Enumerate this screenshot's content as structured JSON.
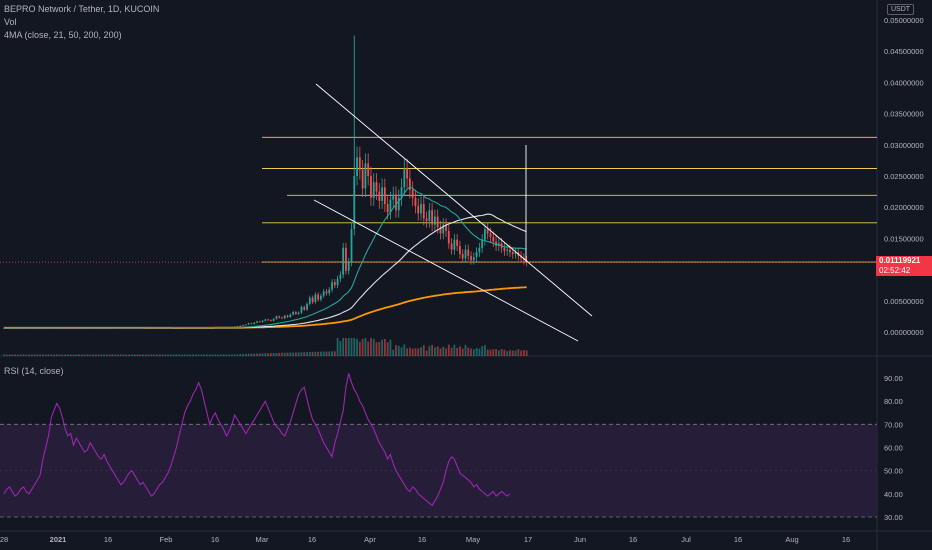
{
  "header": {
    "title": "BEPRO Network / Tether, 1D, KUCOIN",
    "vol_label": "Vol",
    "ma_label": "4MA (close, 21, 50, 200, 200)",
    "rsi_label": "RSI (14, close)",
    "currency": "USDT"
  },
  "last_price": {
    "value": "0.01119921",
    "countdown": "02:52:42"
  },
  "colors": {
    "background": "#131722",
    "up": "#26a69a",
    "down": "#ef5350",
    "ma21": "#26a69a",
    "ma50": "#e0e3eb",
    "ma200": "#ff9800",
    "horizontal_levels": "#f2c94c",
    "trendlines": "#ffffff",
    "rsi_line": "#9c27b0",
    "rsi_band": "#2a1f3d"
  },
  "chart_data": [
    {
      "type": "candlestick",
      "y_axis_labels": [
        "0.05000000",
        "0.04500000",
        "0.04000000",
        "0.03500000",
        "0.03000000",
        "0.02500000",
        "0.02000000",
        "0.01500000",
        "0.01000000",
        "0.00500000",
        "0.00000000"
      ],
      "ylim": [
        0,
        0.05
      ],
      "x_axis_labels": [
        "28",
        "2021",
        "16",
        "Feb",
        "16",
        "Mar",
        "16",
        "Apr",
        "16",
        "May",
        "17",
        "Jun",
        "16",
        "Jul",
        "16",
        "Aug",
        "16"
      ],
      "horizontal_levels": [
        0.0312,
        0.0262,
        0.0219,
        0.0175,
        0.0112
      ],
      "daily_closes": [
        0.00067,
        0.00067,
        0.00066,
        0.00067,
        0.00066,
        0.00067,
        0.00067,
        0.00066,
        0.00067,
        0.00066,
        0.00067,
        0.00067,
        0.00066,
        0.00067,
        0.00066,
        0.00067,
        0.00067,
        0.00066,
        0.00067,
        0.00066,
        0.00067,
        0.00067,
        0.00066,
        0.00067,
        0.00066,
        0.00067,
        0.00067,
        0.00066,
        0.00067,
        0.00066,
        0.00067,
        0.00067,
        0.00066,
        0.00067,
        0.00066,
        0.00067,
        0.00067,
        0.00066,
        0.00067,
        0.00066,
        0.00067,
        0.0007,
        0.00069,
        0.0007,
        0.0007,
        0.00069,
        0.0007,
        0.0007,
        0.00069,
        0.0007,
        0.0007,
        0.00069,
        0.0007,
        0.0007,
        0.00069,
        0.0007,
        0.0007,
        0.00069,
        0.0007,
        0.0007,
        0.0007,
        0.0007,
        0.0007,
        0.0007,
        0.0007,
        0.0007,
        0.0007,
        0.0007,
        0.0007,
        0.0007,
        0.0007,
        0.0007,
        0.0007,
        0.0007,
        0.0007,
        0.0007,
        0.0007,
        0.0007,
        0.0007,
        0.0007,
        0.0007,
        0.00072,
        0.0008,
        0.00085,
        0.0009,
        0.001,
        0.0011,
        0.0012,
        0.0014,
        0.0013,
        0.0015,
        0.0017,
        0.0016,
        0.0018,
        0.002,
        0.0019,
        0.0018,
        0.0021,
        0.0025,
        0.0023,
        0.0022,
        0.0026,
        0.0024,
        0.0028,
        0.0032,
        0.0029,
        0.0031,
        0.004,
        0.0036,
        0.0045,
        0.0055,
        0.0048,
        0.006,
        0.0052,
        0.0058,
        0.0065,
        0.0062,
        0.0068,
        0.008,
        0.0075,
        0.0085,
        0.0092,
        0.0135,
        0.0098,
        0.0112,
        0.0165,
        0.025,
        0.028,
        0.026,
        0.023,
        0.027,
        0.025,
        0.0215,
        0.024,
        0.0225,
        0.021,
        0.0232,
        0.0205,
        0.0192,
        0.0212,
        0.022,
        0.0195,
        0.0215,
        0.0232,
        0.0262,
        0.0246,
        0.0228,
        0.0215,
        0.0202,
        0.019,
        0.0205,
        0.0182,
        0.0178,
        0.0195,
        0.0172,
        0.0185,
        0.0168,
        0.0158,
        0.0172,
        0.0162,
        0.0142,
        0.0132,
        0.0148,
        0.0138,
        0.0125,
        0.0118,
        0.0132,
        0.0122,
        0.0115,
        0.012,
        0.0128,
        0.0135,
        0.0148,
        0.0165,
        0.0158,
        0.0152,
        0.0145,
        0.0138,
        0.0142,
        0.0135,
        0.013,
        0.0132,
        0.0128,
        0.0125,
        0.0128,
        0.0122,
        0.0119,
        0.0115,
        0.0112
      ],
      "daily_volumes": [
        2,
        1,
        2,
        1,
        2,
        1,
        2,
        1,
        2,
        1,
        2,
        1,
        2,
        1,
        2,
        1,
        2,
        1,
        2,
        1,
        2,
        1,
        2,
        1,
        2,
        1,
        2,
        1,
        2,
        1,
        2,
        1,
        2,
        1,
        2,
        1,
        2,
        1,
        2,
        1,
        2,
        1,
        2,
        1,
        2,
        1,
        2,
        1,
        2,
        1,
        2,
        1,
        2,
        1,
        2,
        1,
        2,
        1,
        2,
        1,
        2,
        1,
        2,
        1,
        2,
        1,
        2,
        1,
        2,
        1,
        2,
        1,
        2,
        1,
        2,
        1,
        2,
        1,
        2,
        1,
        2,
        1,
        2,
        1,
        2,
        1,
        2,
        1,
        2,
        1,
        2,
        1,
        2,
        1,
        2,
        1,
        2,
        1,
        2,
        1,
        2,
        1,
        2,
        1,
        2,
        1,
        2,
        1,
        2,
        1,
        2,
        1,
        2,
        1,
        2,
        1,
        2,
        1,
        2,
        1,
        2,
        1,
        2,
        1,
        2,
        1,
        2,
        1,
        2,
        1,
        2,
        1,
        2,
        1,
        2,
        1,
        2,
        1,
        2,
        1,
        2,
        1,
        2,
        1,
        2,
        1,
        2,
        1,
        2,
        1,
        2,
        1,
        2,
        1,
        2,
        1,
        2,
        1,
        2,
        1,
        2,
        1,
        2,
        1,
        2,
        1,
        2,
        1,
        2,
        1,
        2,
        1,
        2,
        1,
        2,
        1,
        2,
        1,
        2,
        1,
        2,
        1,
        2,
        1,
        2,
        1
      ]
    },
    {
      "type": "line",
      "y_axis_labels": [
        "90.00",
        "80.00",
        "70.00",
        "60.00",
        "50.00",
        "40.00",
        "30.00"
      ],
      "ylim": [
        30,
        90
      ],
      "band": [
        30,
        70
      ],
      "rsi_values": [
        40,
        42,
        43,
        41,
        39,
        40,
        42,
        43,
        41,
        40,
        42,
        44,
        46,
        48,
        55,
        60,
        65,
        73,
        76,
        79,
        77,
        73,
        68,
        65,
        66,
        61,
        64,
        62,
        60,
        58,
        59,
        62,
        60,
        58,
        56,
        55,
        57,
        54,
        52,
        50,
        48,
        46,
        44,
        45,
        47,
        49,
        50,
        48,
        46,
        44,
        45,
        43,
        41,
        39,
        40,
        42,
        44,
        45,
        47,
        49,
        52,
        56,
        60,
        65,
        70,
        75,
        78,
        80,
        83,
        85,
        88,
        85,
        80,
        75,
        70,
        73,
        75,
        72,
        70,
        68,
        65,
        67,
        70,
        74,
        72,
        70,
        68,
        66,
        68,
        70,
        72,
        74,
        76,
        78,
        80,
        77,
        74,
        71,
        69,
        68,
        66,
        65,
        68,
        71,
        75,
        79,
        83,
        85,
        86,
        81,
        76,
        72,
        70,
        68,
        65,
        62,
        60,
        58,
        56,
        62,
        66,
        71,
        76,
        86,
        92,
        88,
        85,
        83,
        80,
        78,
        75,
        72,
        70,
        68,
        65,
        62,
        60,
        58,
        55,
        57,
        53,
        50,
        48,
        46,
        44,
        42,
        41,
        43,
        42,
        40,
        39,
        38,
        37,
        36,
        35,
        37,
        39,
        42,
        45,
        50,
        54,
        56,
        55,
        52,
        49,
        48,
        47,
        46,
        45,
        43,
        44,
        42,
        41,
        40,
        39,
        40,
        41,
        39,
        40,
        41,
        40,
        39,
        40
      ]
    }
  ]
}
